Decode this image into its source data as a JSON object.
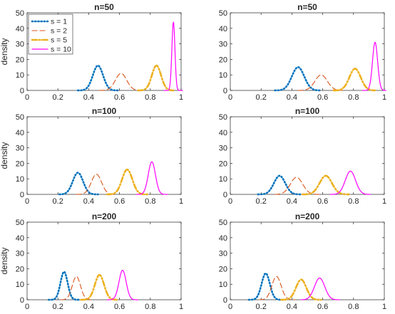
{
  "colors": {
    "s1": "#0072BD",
    "s2": "#D95319",
    "s5": "#EDB120",
    "s10": "#FF00FF",
    "axis": "#262626",
    "background": "#ffffff"
  },
  "legend": {
    "placement": "top-left of first panel",
    "entries": [
      "s = 1",
      "s = 2",
      "s = 5",
      "s = 10"
    ]
  },
  "chart_data": [
    {
      "type": "line",
      "title": "n=50",
      "ylabel": "density",
      "xlim": [
        0,
        1
      ],
      "ylim": [
        0,
        50
      ],
      "xticks": [
        "0",
        "0.2",
        "0.4",
        "0.6",
        "0.8",
        "1"
      ],
      "yticks": [
        "0",
        "10",
        "20",
        "30",
        "40",
        "50"
      ],
      "series": [
        {
          "name": "s = 1",
          "style": "dotted",
          "color": "#0072BD",
          "peak_x": 0.46,
          "peak_y": 16,
          "x_range": [
            0.36,
            0.56
          ]
        },
        {
          "name": "s = 2",
          "style": "dashed",
          "color": "#D95319",
          "peak_x": 0.61,
          "peak_y": 11,
          "x_range": [
            0.5,
            0.7
          ]
        },
        {
          "name": "s = 5",
          "style": "dashdot",
          "color": "#EDB120",
          "peak_x": 0.84,
          "peak_y": 16,
          "x_range": [
            0.75,
            0.92
          ]
        },
        {
          "name": "s = 10",
          "style": "solid",
          "color": "#FF00FF",
          "peak_x": 0.95,
          "peak_y": 44,
          "x_range": [
            0.92,
            0.98
          ]
        }
      ]
    },
    {
      "type": "line",
      "title": "n=50",
      "ylabel": "",
      "xlim": [
        0,
        1
      ],
      "ylim": [
        0,
        50
      ],
      "xticks": [
        "0",
        "0.2",
        "0.4",
        "0.6",
        "0.8",
        "1"
      ],
      "yticks": [
        "0",
        "10",
        "20",
        "30",
        "40",
        "50"
      ],
      "series": [
        {
          "name": "s = 1",
          "style": "dotted",
          "color": "#0072BD",
          "peak_x": 0.44,
          "peak_y": 15,
          "x_range": [
            0.32,
            0.56
          ]
        },
        {
          "name": "s = 2",
          "style": "dashed",
          "color": "#D95319",
          "peak_x": 0.59,
          "peak_y": 10,
          "x_range": [
            0.47,
            0.7
          ]
        },
        {
          "name": "s = 5",
          "style": "dashdot",
          "color": "#EDB120",
          "peak_x": 0.81,
          "peak_y": 14,
          "x_range": [
            0.7,
            0.91
          ]
        },
        {
          "name": "s = 10",
          "style": "solid",
          "color": "#FF00FF",
          "peak_x": 0.94,
          "peak_y": 31,
          "x_range": [
            0.89,
            0.98
          ]
        }
      ]
    },
    {
      "type": "line",
      "title": "n=100",
      "ylabel": "density",
      "xlim": [
        0,
        1
      ],
      "ylim": [
        0,
        50
      ],
      "xticks": [
        "0",
        "0.2",
        "0.4",
        "0.6",
        "0.8",
        "1"
      ],
      "yticks": [
        "0",
        "10",
        "20",
        "30",
        "40",
        "50"
      ],
      "series": [
        {
          "name": "s = 1",
          "style": "dotted",
          "color": "#0072BD",
          "peak_x": 0.33,
          "peak_y": 14,
          "x_range": [
            0.24,
            0.43
          ]
        },
        {
          "name": "s = 2",
          "style": "dashed",
          "color": "#D95319",
          "peak_x": 0.45,
          "peak_y": 13,
          "x_range": [
            0.35,
            0.55
          ]
        },
        {
          "name": "s = 5",
          "style": "dashdot",
          "color": "#EDB120",
          "peak_x": 0.65,
          "peak_y": 16,
          "x_range": [
            0.55,
            0.75
          ]
        },
        {
          "name": "s = 10",
          "style": "solid",
          "color": "#FF00FF",
          "peak_x": 0.81,
          "peak_y": 21,
          "x_range": [
            0.74,
            0.88
          ]
        }
      ]
    },
    {
      "type": "line",
      "title": "n=100",
      "ylabel": "",
      "xlim": [
        0,
        1
      ],
      "ylim": [
        0,
        50
      ],
      "xticks": [
        "0",
        "0.2",
        "0.4",
        "0.6",
        "0.8",
        "1"
      ],
      "yticks": [
        "0",
        "10",
        "20",
        "30",
        "40",
        "50"
      ],
      "series": [
        {
          "name": "s = 1",
          "style": "dotted",
          "color": "#0072BD",
          "peak_x": 0.32,
          "peak_y": 12,
          "x_range": [
            0.21,
            0.43
          ]
        },
        {
          "name": "s = 2",
          "style": "dashed",
          "color": "#D95319",
          "peak_x": 0.43,
          "peak_y": 11,
          "x_range": [
            0.32,
            0.55
          ]
        },
        {
          "name": "s = 5",
          "style": "dashdot",
          "color": "#EDB120",
          "peak_x": 0.62,
          "peak_y": 12,
          "x_range": [
            0.5,
            0.74
          ]
        },
        {
          "name": "s = 10",
          "style": "solid",
          "color": "#FF00FF",
          "peak_x": 0.78,
          "peak_y": 15,
          "x_range": [
            0.68,
            0.88
          ]
        }
      ]
    },
    {
      "type": "line",
      "title": "n=200",
      "ylabel": "density",
      "xlim": [
        0,
        1
      ],
      "ylim": [
        0,
        50
      ],
      "xticks": [
        "0",
        "0.2",
        "0.4",
        "0.6",
        "0.8",
        "1"
      ],
      "yticks": [
        "0",
        "10",
        "20",
        "30",
        "40",
        "50"
      ],
      "series": [
        {
          "name": "s = 1",
          "style": "dotted",
          "color": "#0072BD",
          "peak_x": 0.24,
          "peak_y": 18,
          "x_range": [
            0.17,
            0.31
          ]
        },
        {
          "name": "s = 2",
          "style": "dashed",
          "color": "#D95319",
          "peak_x": 0.32,
          "peak_y": 15,
          "x_range": [
            0.25,
            0.4
          ]
        },
        {
          "name": "s = 5",
          "style": "dashdot",
          "color": "#EDB120",
          "peak_x": 0.47,
          "peak_y": 16,
          "x_range": [
            0.38,
            0.56
          ]
        },
        {
          "name": "s = 10",
          "style": "solid",
          "color": "#FF00FF",
          "peak_x": 0.62,
          "peak_y": 19,
          "x_range": [
            0.55,
            0.69
          ]
        }
      ]
    },
    {
      "type": "line",
      "title": "n=200",
      "ylabel": "",
      "xlim": [
        0,
        1
      ],
      "ylim": [
        0,
        50
      ],
      "xticks": [
        "0",
        "0.2",
        "0.4",
        "0.6",
        "0.8",
        "1"
      ],
      "yticks": [
        "0",
        "10",
        "20",
        "30",
        "40",
        "50"
      ],
      "series": [
        {
          "name": "s = 1",
          "style": "dotted",
          "color": "#0072BD",
          "peak_x": 0.23,
          "peak_y": 17,
          "x_range": [
            0.15,
            0.31
          ]
        },
        {
          "name": "s = 2",
          "style": "dashed",
          "color": "#D95319",
          "peak_x": 0.3,
          "peak_y": 15,
          "x_range": [
            0.22,
            0.39
          ]
        },
        {
          "name": "s = 5",
          "style": "dashdot",
          "color": "#EDB120",
          "peak_x": 0.46,
          "peak_y": 13,
          "x_range": [
            0.36,
            0.56
          ]
        },
        {
          "name": "s = 10",
          "style": "solid",
          "color": "#FF00FF",
          "peak_x": 0.58,
          "peak_y": 14,
          "x_range": [
            0.49,
            0.68
          ]
        }
      ]
    }
  ]
}
